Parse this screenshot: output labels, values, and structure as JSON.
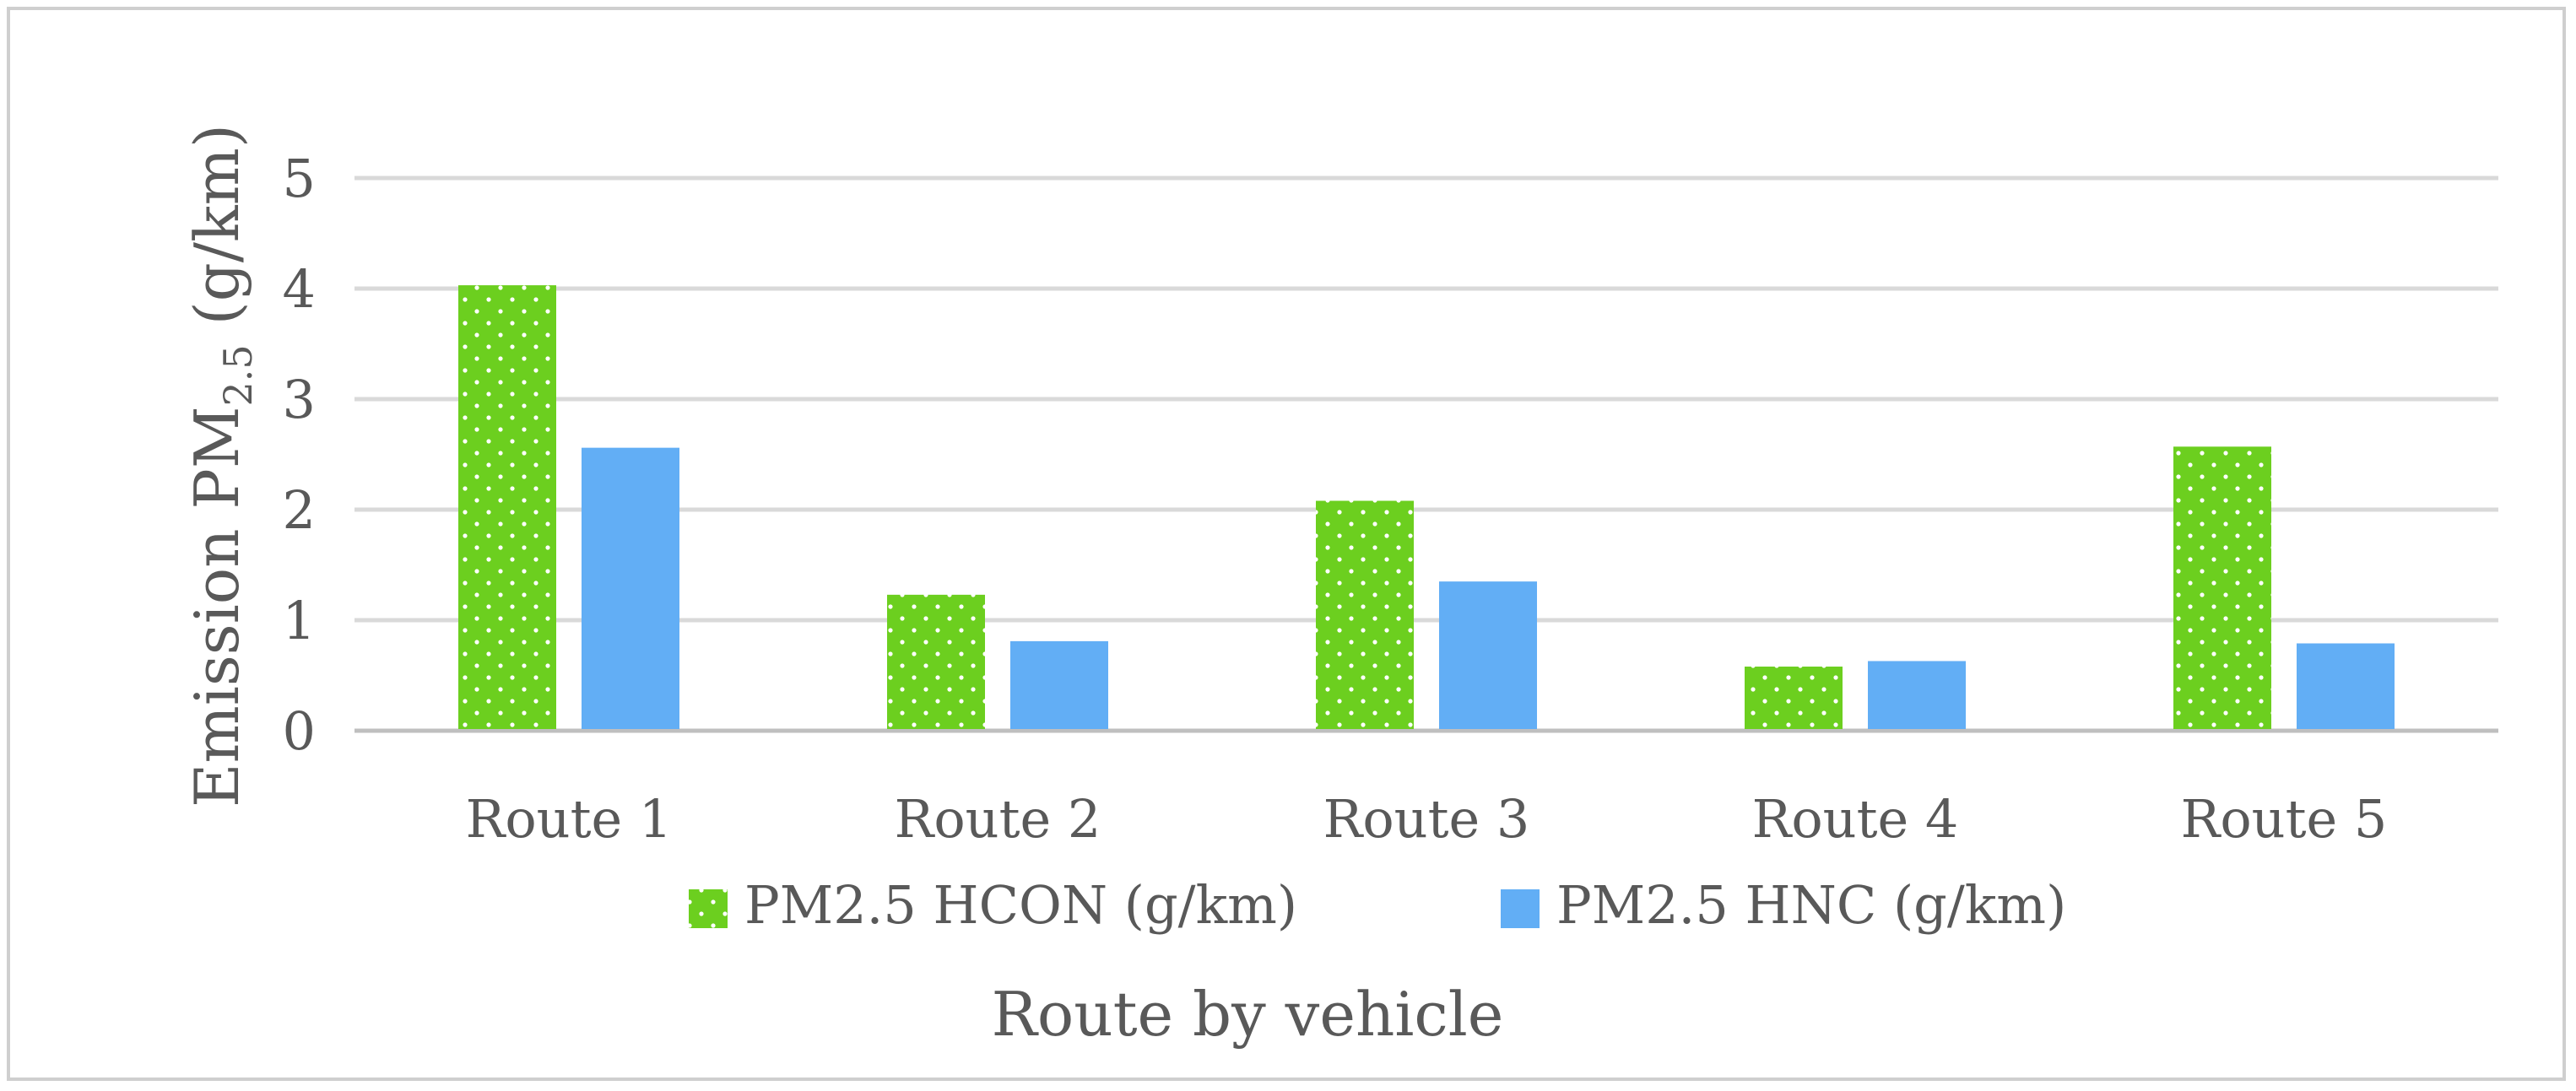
{
  "chart_data": {
    "type": "bar",
    "title": "",
    "ylabel": {
      "main": "Emission PM",
      "subscript": "2.5",
      "unit": " (g/km)"
    },
    "xlabel": "Route by vehicle",
    "categories": [
      "Route 1",
      "Route 2",
      "Route 3",
      "Route 4",
      "Route 5"
    ],
    "ylim": [
      0,
      5
    ],
    "yticks": [
      "0",
      "1",
      "2",
      "3",
      "4",
      "5"
    ],
    "grid": true,
    "legend_position": "bottom",
    "series": [
      {
        "name": "PM2.5 HCON (g/km)",
        "values": [
          4.03,
          1.23,
          2.08,
          0.58,
          2.57
        ],
        "color": "#6ccf1f",
        "pattern": "dotted"
      },
      {
        "name": "PM2.5 HNC (g/km)",
        "values": [
          2.56,
          0.81,
          1.35,
          0.63,
          0.79
        ],
        "color": "#62aef5",
        "pattern": "solid"
      }
    ],
    "colors": {
      "grid": "#d9d9d9",
      "axis": "#bfbfbf",
      "text": "#595959"
    }
  }
}
